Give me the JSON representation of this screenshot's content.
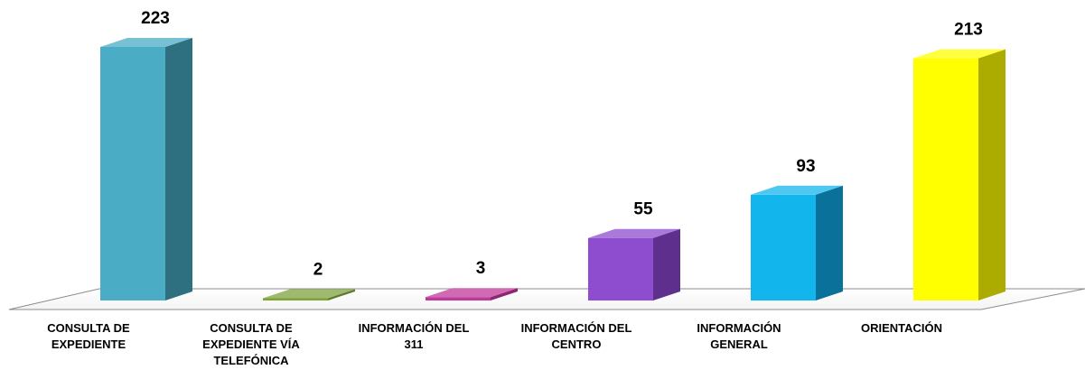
{
  "chart_data": {
    "type": "bar",
    "categories": [
      [
        "CONSULTA DE",
        "EXPEDIENTE"
      ],
      [
        "CONSULTA DE",
        "EXPEDIENTE VÍA",
        "TELEFÓNICA"
      ],
      [
        "INFORMACIÓN DEL",
        "311"
      ],
      [
        "INFORMACIÓN DEL",
        "CENTRO"
      ],
      [
        "INFORMACIÓN",
        "GENERAL"
      ],
      [
        "ORIENTACIÓN"
      ]
    ],
    "values": [
      223,
      2,
      3,
      55,
      93,
      213
    ],
    "value_labels": [
      "223",
      "2",
      "3",
      "55",
      "93",
      "213"
    ],
    "colors": [
      "#4BACC6",
      "#7FA33B",
      "#C0389A",
      "#8E4CCF",
      "#12B5EC",
      "#FFFF00"
    ],
    "side_colors": [
      "#2E6F80",
      "#5F7A2A",
      "#8F2570",
      "#5E2F8D",
      "#0A729A",
      "#ABAB00"
    ],
    "ylim": [
      0,
      223
    ],
    "grid": false,
    "legend": "none"
  }
}
